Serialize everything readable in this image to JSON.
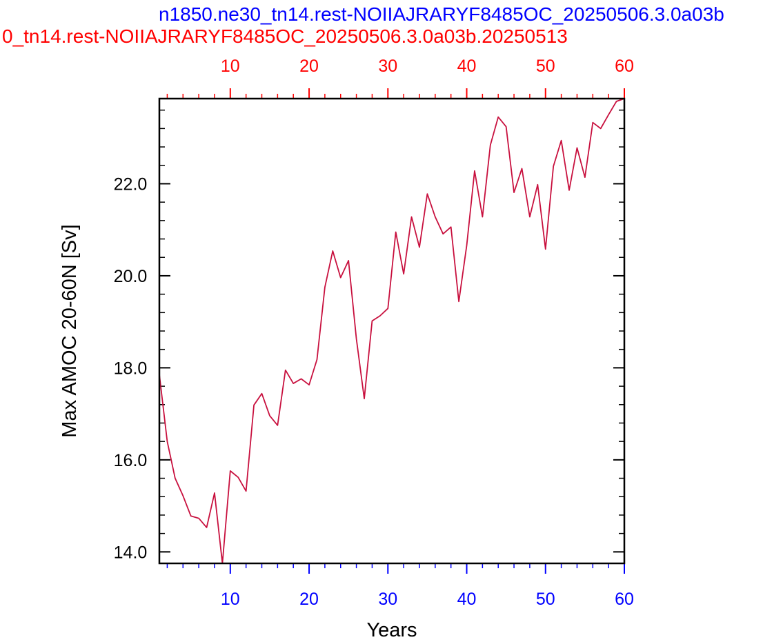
{
  "chart_data": {
    "type": "line",
    "title_blue": "n1850.ne30_tn14.rest-NOIIAJRARYF8485OC_20250506.3.0a03b",
    "title_red": "0_tn14.rest-NOIIAJRARYF8485OC_20250506.3.0a03b.20250513",
    "xlabel": "Years",
    "ylabel": "Max AMOC 20-60N [Sv]",
    "xlim": [
      1,
      60
    ],
    "ylim": [
      13.75,
      23.85
    ],
    "xticks": [
      10,
      20,
      30,
      40,
      50,
      60
    ],
    "xtick_labels": [
      "10",
      "20",
      "30",
      "40",
      "50",
      "60"
    ],
    "yticks": [
      14.0,
      16.0,
      18.0,
      20.0,
      22.0
    ],
    "ytick_labels": [
      "14.0",
      "16.0",
      "18.0",
      "20.0",
      "22.0"
    ],
    "grid": false,
    "colors": {
      "line": "#c8103e",
      "bottom_axis": "#0000ff",
      "top_axis": "#ff0000",
      "title_blue": "#0000ff",
      "title_red": "#ff0000"
    },
    "series": [
      {
        "x": [
          1,
          2,
          3,
          4,
          5,
          6,
          7,
          8,
          9,
          10,
          11,
          12,
          13,
          14,
          15,
          16,
          17,
          18,
          19,
          20,
          21,
          22,
          23,
          24,
          25,
          26,
          27,
          28,
          29,
          30,
          31,
          32,
          33,
          34,
          35,
          36,
          37,
          38,
          39,
          40,
          41,
          42,
          43,
          44,
          45,
          46,
          47,
          48,
          49,
          50,
          51,
          52,
          53,
          54,
          55,
          56,
          57,
          58,
          59,
          60
        ],
        "values": [
          17.85,
          16.4,
          15.6,
          15.22,
          14.78,
          14.73,
          14.53,
          15.28,
          13.75,
          15.76,
          15.62,
          15.32,
          17.19,
          17.44,
          16.96,
          16.75,
          17.95,
          17.66,
          17.76,
          17.63,
          18.18,
          19.75,
          20.54,
          19.96,
          20.33,
          18.63,
          17.33,
          19.02,
          19.13,
          19.29,
          20.95,
          20.04,
          21.28,
          20.62,
          21.78,
          21.28,
          20.91,
          21.06,
          19.44,
          20.66,
          22.28,
          21.28,
          22.84,
          23.45,
          23.24,
          21.81,
          22.33,
          21.28,
          21.98,
          20.58,
          22.38,
          22.94,
          21.86,
          22.78,
          22.14,
          23.33,
          23.2,
          23.5,
          23.79,
          23.85
        ]
      }
    ]
  }
}
